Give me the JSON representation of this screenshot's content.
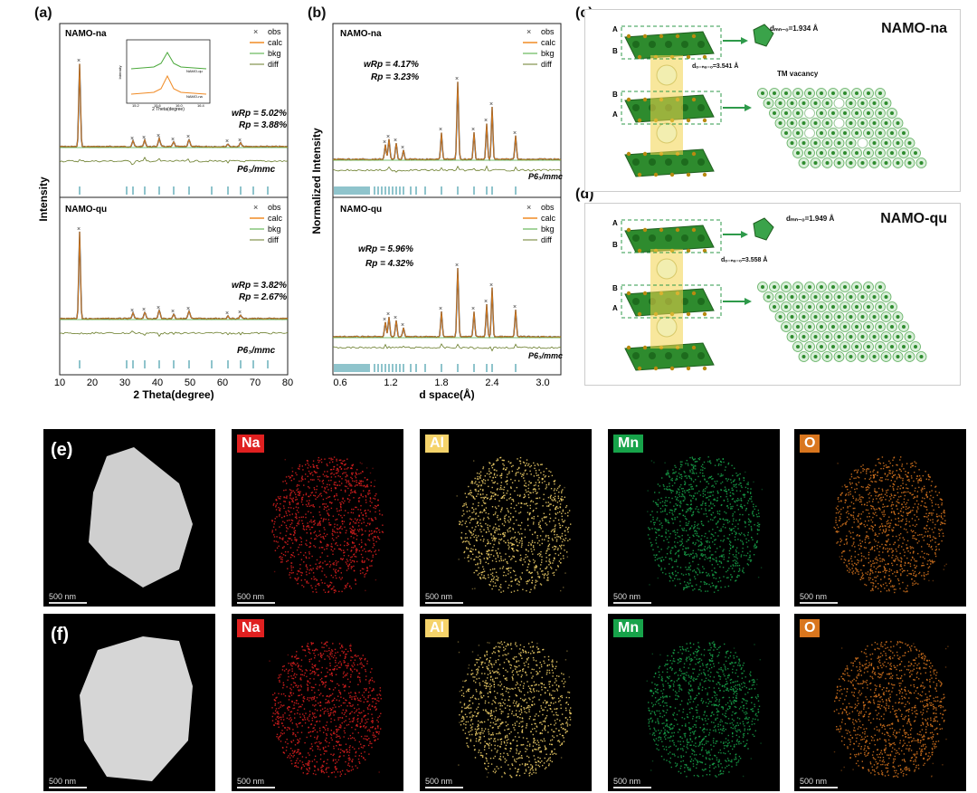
{
  "panels": {
    "a": "(a)",
    "b": "(b)",
    "c": "(c)",
    "d": "(d)",
    "e": "(e)",
    "f": "(f)"
  },
  "legend": [
    "obs",
    "calc",
    "bkg",
    "diff"
  ],
  "colors": {
    "obs": "#333333",
    "calc": "#f08a24",
    "bkg": "#4aa83a",
    "diff": "#6a7d2a",
    "ticks": "#1f8a9a"
  },
  "panel_a": {
    "ylabel": "Intensity",
    "xlabel": "2 Theta(degree)",
    "xticks": [
      "10",
      "20",
      "30",
      "40",
      "50",
      "60",
      "70",
      "80"
    ],
    "top": {
      "sample": "NAMO-na",
      "wrp": "wRp = 5.02%",
      "rp": "Rp = 3.88%",
      "space_group": "P6₃/mmc"
    },
    "bottom": {
      "sample": "NAMO-qu",
      "wrp": "wRp = 3.82%",
      "rp": "Rp = 2.67%",
      "space_group": "P6₃/mmc"
    },
    "inset": {
      "xlabel": "2 Theta(degree)",
      "ylabel": "Intensity",
      "labels": [
        "NAMO-qu",
        "NAMO-na"
      ],
      "xticks": [
        "15.2",
        "15.6",
        "16.0",
        "16.4"
      ]
    }
  },
  "panel_b": {
    "ylabel": "Normalized Intensity",
    "xlabel": "d space(Å)",
    "xticks": [
      "0.6",
      "1.2",
      "1.8",
      "2.4",
      "3.0"
    ],
    "top": {
      "sample": "NAMO-na",
      "wrp": "wRp = 4.17%",
      "rp": "Rp = 3.23%",
      "space_group": "P6₃/mmc"
    },
    "bottom": {
      "sample": "NAMO-qu",
      "wrp": "wRp = 5.96%",
      "rp": "Rp = 4.32%",
      "space_group": "P6₃/mmc"
    }
  },
  "panel_c": {
    "title": "NAMO-na",
    "d_mno": "dₘₙ₋ₒ=1.934 Å",
    "d_ona": "dₒ₋ₙₐ₋ₒ=3.541 Å",
    "vacancy": "TM vacancy",
    "layers": [
      "A",
      "B",
      "B",
      "A"
    ]
  },
  "panel_d": {
    "title": "NAMO-qu",
    "d_mno": "dₘₙ₋ₒ=1.949 Å",
    "d_ona": "dₒ₋ₙₐ₋ₒ=3.558 Å",
    "layers": [
      "A",
      "B",
      "B",
      "A"
    ]
  },
  "eds": {
    "elements": [
      {
        "name": "Na",
        "color": "#e02020"
      },
      {
        "name": "Al",
        "color": "#f5d36a"
      },
      {
        "name": "Mn",
        "color": "#17a34a"
      },
      {
        "name": "O",
        "color": "#d9761e"
      }
    ],
    "scale_bar": "500 nm"
  }
}
